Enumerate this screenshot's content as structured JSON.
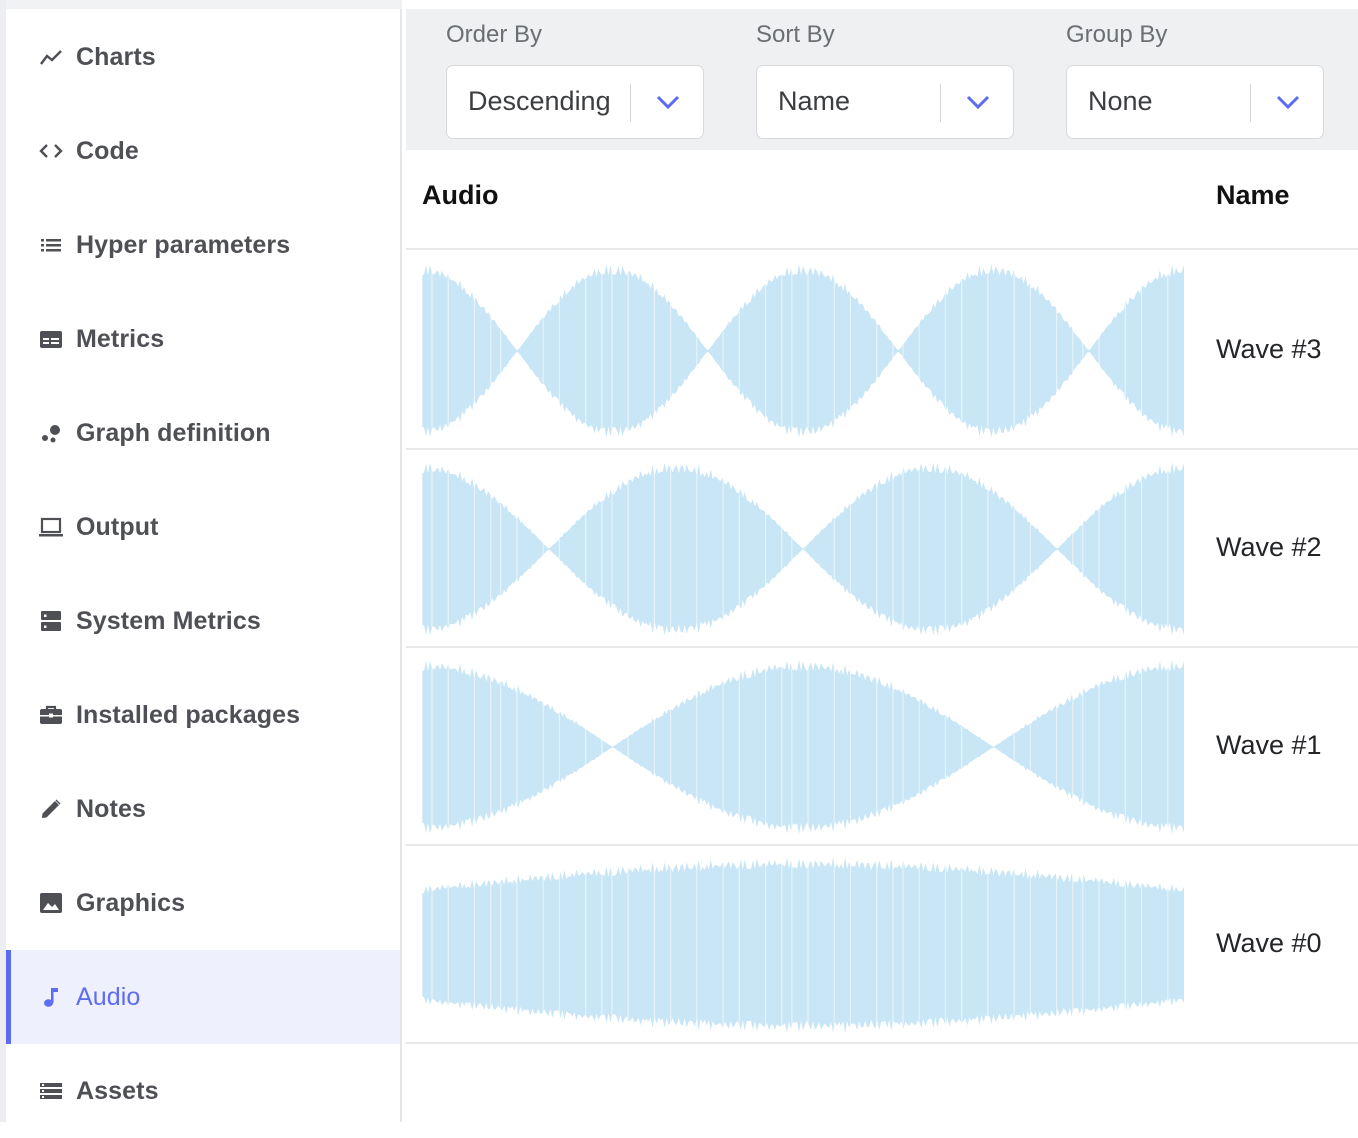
{
  "sidebar": {
    "items": [
      {
        "label": "Charts",
        "icon": "trend-line-icon",
        "active": false
      },
      {
        "label": "Code",
        "icon": "code-brackets-icon",
        "active": false
      },
      {
        "label": "Hyper parameters",
        "icon": "list-icon",
        "active": false
      },
      {
        "label": "Metrics",
        "icon": "metrics-card-icon",
        "active": false
      },
      {
        "label": "Graph definition",
        "icon": "bubbles-icon",
        "active": false
      },
      {
        "label": "Output",
        "icon": "laptop-icon",
        "active": false
      },
      {
        "label": "System Metrics",
        "icon": "server-icon",
        "active": false
      },
      {
        "label": "Installed packages",
        "icon": "briefcase-icon",
        "active": false
      },
      {
        "label": "Notes",
        "icon": "pencil-icon",
        "active": false
      },
      {
        "label": "Graphics",
        "icon": "image-icon",
        "active": false
      },
      {
        "label": "Audio",
        "icon": "music-note-icon",
        "active": true
      },
      {
        "label": "Assets",
        "icon": "stacked-list-icon",
        "active": false
      }
    ]
  },
  "filters": {
    "order_by": {
      "label": "Order By",
      "value": "Descending"
    },
    "sort_by": {
      "label": "Sort By",
      "value": "Name"
    },
    "group_by": {
      "label": "Group By",
      "value": "None"
    }
  },
  "table": {
    "columns": {
      "audio": "Audio",
      "name": "Name"
    },
    "rows": [
      {
        "name": "Wave #3",
        "lobes": 4
      },
      {
        "name": "Wave #2",
        "lobes": 3
      },
      {
        "name": "Wave #1",
        "lobes": 2
      },
      {
        "name": "Wave #0",
        "lobes": 1
      }
    ]
  },
  "colors": {
    "accent": "#5c6bf0",
    "waveform": "#c8e6f5",
    "toolbar_bg": "#eef0f2",
    "active_bg": "#eef0fd"
  }
}
